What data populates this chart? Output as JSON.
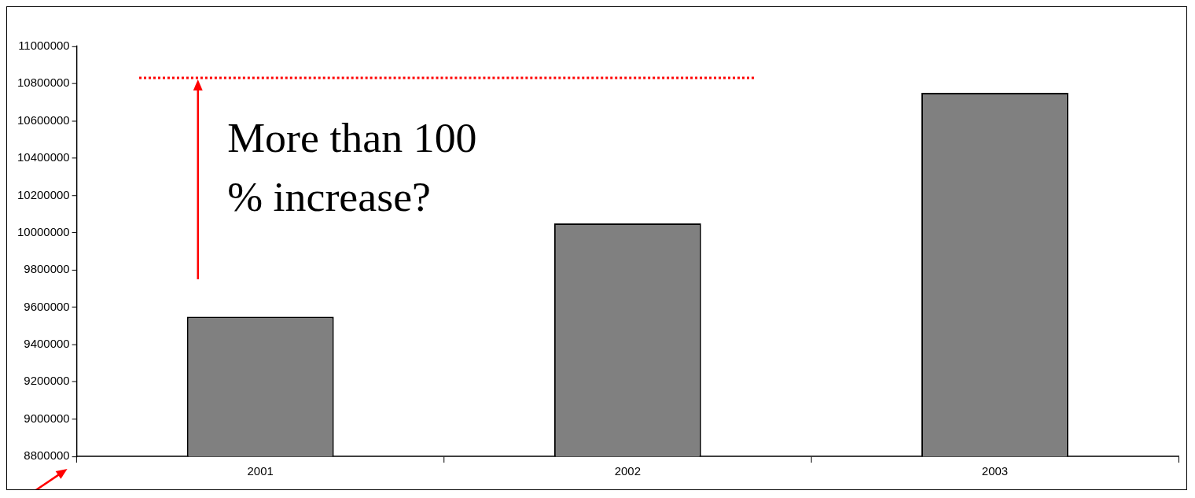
{
  "chart_data": {
    "type": "bar",
    "categories": [
      "2001",
      "2002",
      "2003"
    ],
    "series": [
      {
        "color": "#808080",
        "values": [
          9550000,
          10050000,
          10750000
        ]
      }
    ],
    "ylim": [
      8800000,
      11000000
    ],
    "yticks": [
      8800000,
      9000000,
      9200000,
      9400000,
      9600000,
      9800000,
      10000000,
      10200000,
      10400000,
      10600000,
      10800000,
      11000000
    ],
    "grid": false,
    "legend": false,
    "ref_lines": [
      {
        "axis": "y",
        "value": 10830000,
        "color": "#ff0000",
        "line_style": "dotted"
      }
    ],
    "annotations": [
      "More than 100 % increase?"
    ]
  }
}
